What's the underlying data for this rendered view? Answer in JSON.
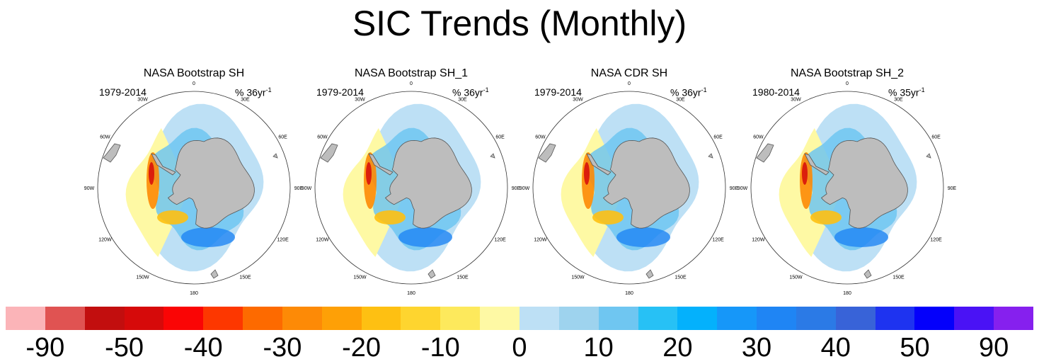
{
  "title": "SIC Trends (Monthly)",
  "units_prefix": "% ",
  "units_exp": "-1",
  "lon_labels": [
    "0",
    "30E",
    "60E",
    "90E",
    "120E",
    "150E",
    "180",
    "150W",
    "120W",
    "90W",
    "60W",
    "30W"
  ],
  "panels": [
    {
      "title": "NASA Bootstrap SH",
      "period": "1979-2014",
      "units_main": "36yr"
    },
    {
      "title": "NASA Bootstrap SH_1",
      "period": "1979-2014",
      "units_main": "36yr"
    },
    {
      "title": "NASA CDR SH",
      "period": "1979-2014",
      "units_main": "36yr"
    },
    {
      "title": "NASA Bootstrap SH_2",
      "period": "1980-2014",
      "units_main": "35yr"
    }
  ],
  "colorbar": {
    "colors": [
      "#fbb4b8",
      "#e05352",
      "#c20e0e",
      "#d60a0a",
      "#fa0505",
      "#fd3700",
      "#fd6a00",
      "#fd8a06",
      "#fea006",
      "#fec012",
      "#fed52f",
      "#fde95c",
      "#fef9a4",
      "#bde0f5",
      "#9ed3ee",
      "#6fc6f1",
      "#27c1f5",
      "#04b1fc",
      "#1697f9",
      "#1f85f4",
      "#2b7ae6",
      "#3863d8",
      "#1e33f0",
      "#0400fb",
      "#4a12f5",
      "#8620ee"
    ],
    "labels": [
      "-90",
      "-50",
      "-40",
      "-30",
      "-20",
      "-10",
      "0",
      "10",
      "20",
      "30",
      "40",
      "50",
      "90"
    ]
  }
}
